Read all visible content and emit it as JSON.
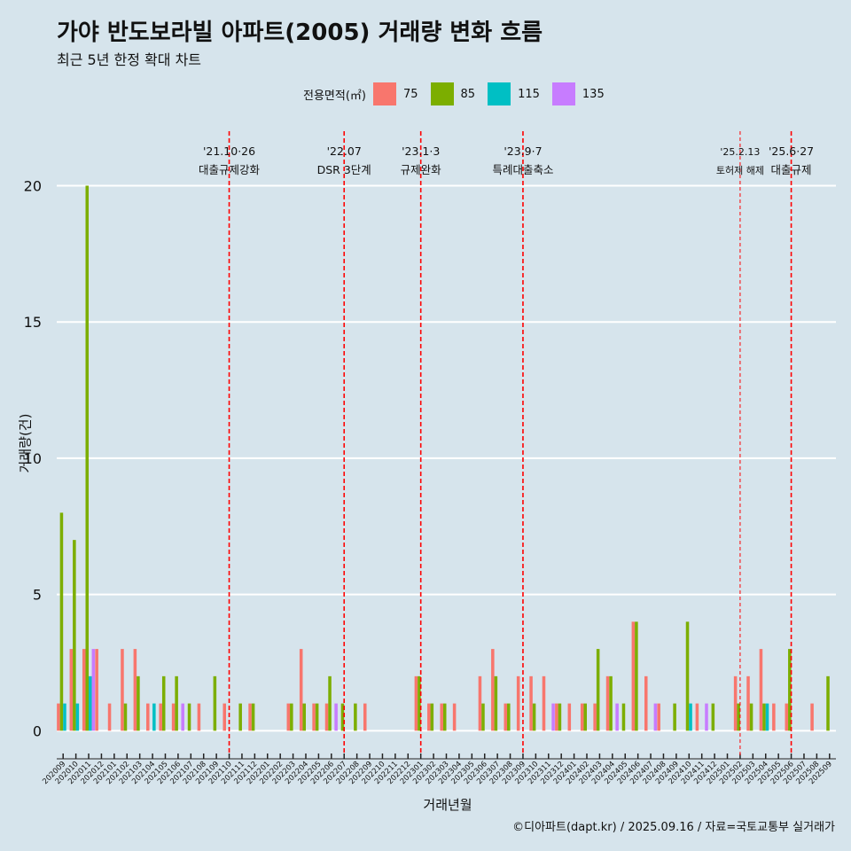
{
  "chart_data": {
    "type": "bar",
    "title": "가야 반도보라빌 아파트(2005) 거래량 변화 흐름",
    "subtitle": "최근 5년 한정 확대 차트",
    "xlabel": "거래년월",
    "ylabel": "거래량(건)",
    "caption": "©디아파트(dapt.kr) / 2025.09.16 / 자료=국토교통부 실거래가",
    "legend_title": "전용면적(㎡)",
    "ylim": [
      -0.9,
      22
    ],
    "yticks": [
      0,
      5,
      10,
      15,
      20
    ],
    "categories": [
      "202009",
      "202010",
      "202011",
      "202012",
      "202101",
      "202102",
      "202103",
      "202104",
      "202105",
      "202106",
      "202107",
      "202108",
      "202109",
      "202110",
      "202111",
      "202112",
      "202201",
      "202202",
      "202203",
      "202204",
      "202205",
      "202206",
      "202207",
      "202208",
      "202209",
      "202210",
      "202211",
      "202212",
      "202301",
      "202302",
      "202303",
      "202304",
      "202305",
      "202306",
      "202307",
      "202308",
      "202309",
      "202310",
      "202311",
      "202312",
      "202401",
      "202402",
      "202403",
      "202404",
      "202405",
      "202406",
      "202407",
      "202408",
      "202409",
      "202410",
      "202411",
      "202412",
      "202501",
      "202502",
      "202503",
      "202504",
      "202505",
      "202506",
      "202507",
      "202508",
      "202509"
    ],
    "series": [
      {
        "name": "75",
        "color": "#f8766d",
        "values": [
          1,
          3,
          3,
          3,
          1,
          3,
          3,
          1,
          1,
          1,
          0,
          1,
          0,
          1,
          0,
          1,
          0,
          0,
          1,
          3,
          1,
          1,
          0,
          0,
          1,
          0,
          0,
          0,
          2,
          1,
          1,
          1,
          0,
          2,
          3,
          1,
          2,
          2,
          2,
          1,
          1,
          1,
          1,
          2,
          0,
          4,
          2,
          1,
          0,
          0,
          1,
          0,
          0,
          2,
          2,
          3,
          1,
          1,
          0,
          1,
          0
        ]
      },
      {
        "name": "85",
        "color": "#7cae00",
        "values": [
          8,
          7,
          20,
          0,
          0,
          1,
          2,
          0,
          2,
          2,
          1,
          0,
          2,
          0,
          1,
          1,
          0,
          0,
          1,
          1,
          1,
          2,
          1,
          1,
          0,
          0,
          0,
          0,
          2,
          1,
          1,
          0,
          0,
          1,
          2,
          1,
          0,
          1,
          0,
          1,
          0,
          1,
          3,
          2,
          1,
          4,
          0,
          0,
          1,
          4,
          0,
          1,
          0,
          1,
          1,
          1,
          0,
          3,
          0,
          0,
          2
        ]
      },
      {
        "name": "115",
        "color": "#00bfc4",
        "values": [
          1,
          1,
          2,
          0,
          0,
          0,
          0,
          1,
          0,
          0,
          0,
          0,
          0,
          0,
          0,
          0,
          0,
          0,
          0,
          0,
          0,
          0,
          0,
          0,
          0,
          0,
          0,
          0,
          0,
          0,
          0,
          0,
          0,
          0,
          0,
          0,
          0,
          0,
          0,
          0,
          0,
          0,
          0,
          0,
          0,
          0,
          0,
          0,
          0,
          1,
          0,
          0,
          0,
          0,
          0,
          1,
          0,
          0,
          0,
          0,
          0
        ]
      },
      {
        "name": "135",
        "color": "#c77cff",
        "values": [
          0,
          0,
          3,
          0,
          0,
          0,
          0,
          0,
          0,
          1,
          0,
          0,
          0,
          0,
          0,
          0,
          0,
          0,
          0,
          0,
          0,
          1,
          0,
          0,
          0,
          0,
          0,
          0,
          0,
          0,
          0,
          0,
          0,
          0,
          0,
          0,
          0,
          0,
          1,
          0,
          0,
          0,
          0,
          1,
          0,
          0,
          1,
          0,
          0,
          0,
          1,
          0,
          0,
          0,
          0,
          0,
          0,
          0,
          0,
          0,
          0
        ]
      }
    ],
    "annotations": [
      {
        "category": "202110",
        "line1": "'21.10·26",
        "line2": "대출규제강화",
        "style": "major"
      },
      {
        "category": "202207",
        "line1": "'22.07",
        "line2": "DSR 3단계",
        "style": "major"
      },
      {
        "category": "202301",
        "line1": "'23.1·3",
        "line2": "규제완화",
        "style": "major"
      },
      {
        "category": "202309",
        "line1": "'23.9·7",
        "line2": "특례대출축소",
        "style": "major"
      },
      {
        "category": "202502",
        "line1": "'25.2.13",
        "line2": "토허제 해제",
        "style": "minor"
      },
      {
        "category": "202506",
        "line1": "'25.6·27",
        "line2": "대출규제",
        "style": "major"
      }
    ]
  }
}
